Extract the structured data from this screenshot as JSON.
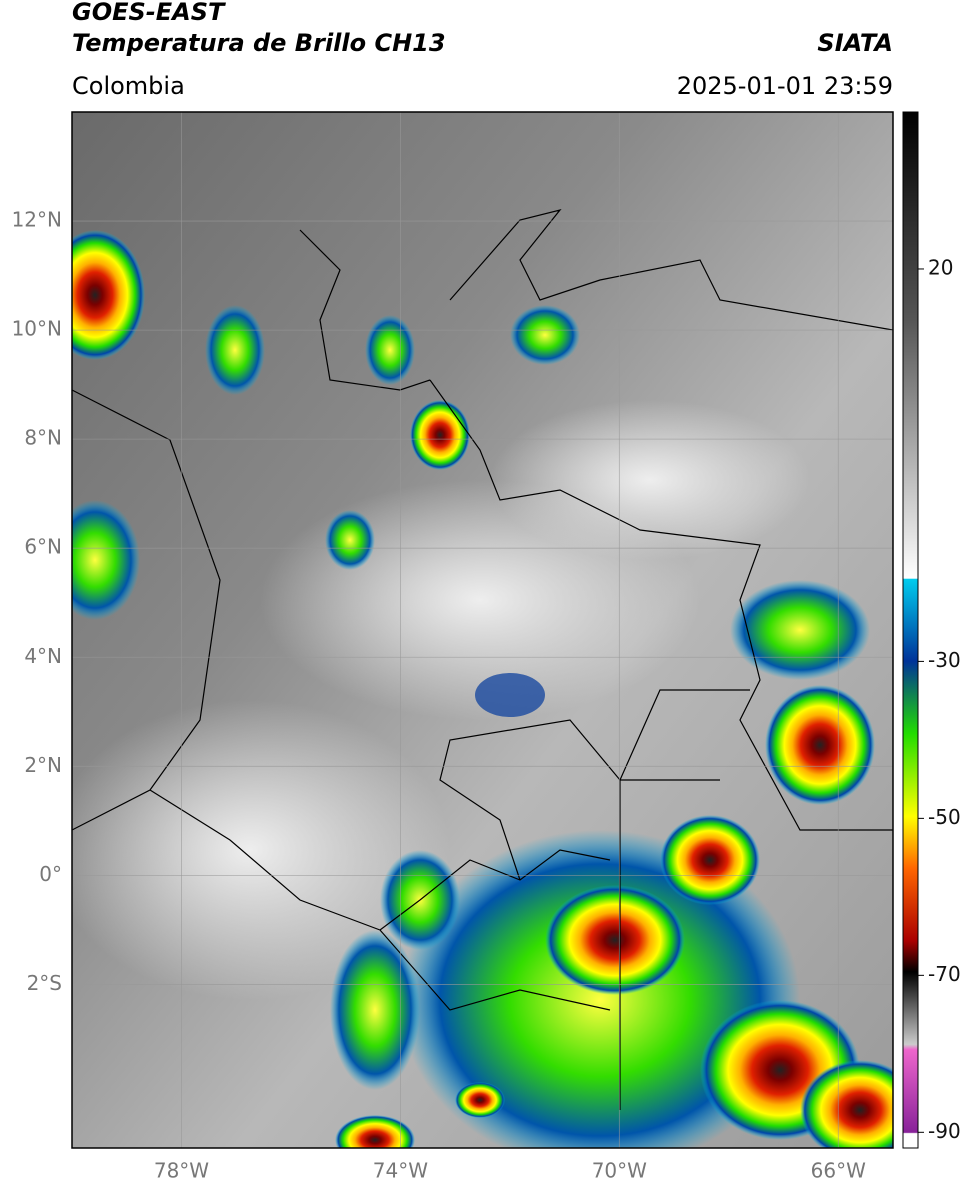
{
  "header": {
    "title": "GOES-EAST",
    "subtitle": "Temperatura de Brillo CH13",
    "region": "Colombia",
    "source": "SIATA",
    "datetime": "2025-01-01 23:59"
  },
  "map": {
    "lonlim": [
      -80,
      -65
    ],
    "latlim": [
      -5,
      14
    ],
    "lon_ticks": [
      {
        "value": -78,
        "label": "78°W"
      },
      {
        "value": -74,
        "label": "74°W"
      },
      {
        "value": -70,
        "label": "70°W"
      },
      {
        "value": -66,
        "label": "66°W"
      }
    ],
    "lat_ticks": [
      {
        "value": 12,
        "label": "12°N"
      },
      {
        "value": 10,
        "label": "10°N"
      },
      {
        "value": 8,
        "label": "8°N"
      },
      {
        "value": 6,
        "label": "6°N"
      },
      {
        "value": 4,
        "label": "4°N"
      },
      {
        "value": 2,
        "label": "2°N"
      },
      {
        "value": 0,
        "label": "0°"
      },
      {
        "value": -2,
        "label": "2°S"
      }
    ]
  },
  "colorbar": {
    "lim": [
      40,
      -92
    ],
    "ticks": [
      20,
      -30,
      -50,
      -70,
      -90
    ]
  }
}
